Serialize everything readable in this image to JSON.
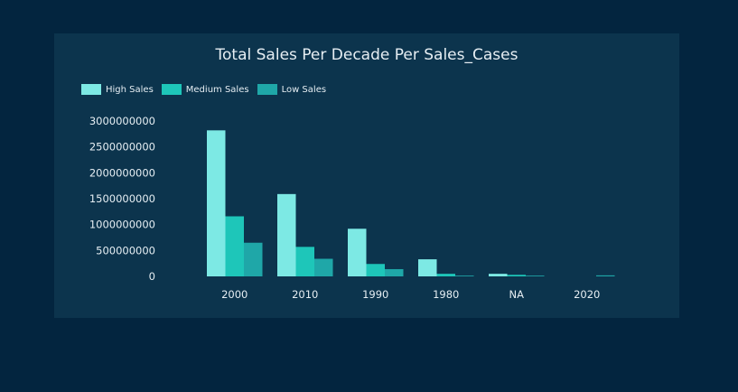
{
  "chart_data": {
    "type": "bar",
    "title": "Total Sales Per Decade Per Sales_Cases",
    "categories": [
      "2000",
      "2010",
      "1990",
      "1980",
      "NA",
      "2020"
    ],
    "series": [
      {
        "name": "High Sales",
        "color": "#7de9e4",
        "values": [
          2820000000,
          1590000000,
          920000000,
          330000000,
          50000000,
          0
        ]
      },
      {
        "name": "Medium Sales",
        "color": "#1ec6b9",
        "values": [
          1160000000,
          570000000,
          240000000,
          50000000,
          30000000,
          0
        ]
      },
      {
        "name": "Low Sales",
        "color": "#1fa7a8",
        "values": [
          650000000,
          340000000,
          140000000,
          15000000,
          15000000,
          20000000
        ]
      }
    ],
    "yticks": [
      "0",
      "500000000",
      "1000000000",
      "1500000000",
      "2000000000",
      "2500000000",
      "3000000000"
    ],
    "ylim": [
      0,
      3000000000
    ],
    "legend_position": "top-left",
    "grid": false,
    "xlabel": "",
    "ylabel": ""
  }
}
